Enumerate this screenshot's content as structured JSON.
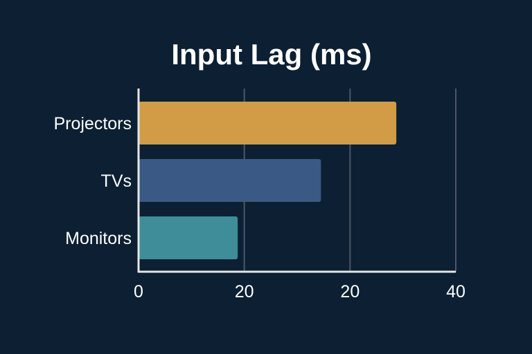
{
  "chart_data": {
    "type": "bar",
    "orientation": "horizontal",
    "title": "Input Lag (ms)",
    "xlabel": "",
    "ylabel": "",
    "categories": [
      "Projectors",
      "TVs",
      "Monitors"
    ],
    "values": [
      32.5,
      23,
      12.5
    ],
    "colors": [
      "#d29b46",
      "#3a5a85",
      "#3f8d98"
    ],
    "xlim": [
      0,
      40
    ],
    "x_tick_labels": [
      "0",
      "20",
      "20",
      "40"
    ],
    "grid": "vertical",
    "background": "#0c1f33"
  }
}
